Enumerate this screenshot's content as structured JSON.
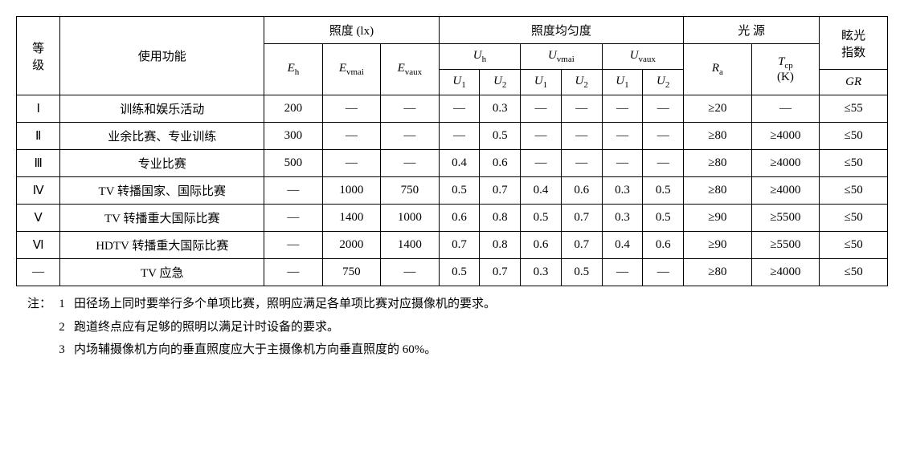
{
  "columns": {
    "level": "等\n级",
    "function": "使用功能",
    "illuminance": "照度 (lx)",
    "uniformity": "照度均匀度",
    "light_source": "光 源",
    "glare": "眩光\n指数",
    "Eh": "E_h",
    "Evmai": "E_vmai",
    "Evaux": "E_vaux",
    "Uh": "U_h",
    "Uvmai": "U_vmai",
    "Uvaux": "U_vaux",
    "U1": "U_1",
    "U2": "U_2",
    "Ra": "R_a",
    "Tcp": "T_cp",
    "TcpUnit": "(K)",
    "GR": "GR"
  },
  "rows": [
    {
      "lvl": "Ⅰ",
      "fn": "训练和娱乐活动",
      "Eh": "200",
      "Evmai": "—",
      "Evaux": "—",
      "Uh1": "—",
      "Uh2": "0.3",
      "Uv1": "—",
      "Uv2": "—",
      "Ux1": "—",
      "Ux2": "—",
      "Ra": "≥20",
      "Tcp": "—",
      "GR": "≤55"
    },
    {
      "lvl": "Ⅱ",
      "fn": "业余比赛、专业训练",
      "Eh": "300",
      "Evmai": "—",
      "Evaux": "—",
      "Uh1": "—",
      "Uh2": "0.5",
      "Uv1": "—",
      "Uv2": "—",
      "Ux1": "—",
      "Ux2": "—",
      "Ra": "≥80",
      "Tcp": "≥4000",
      "GR": "≤50"
    },
    {
      "lvl": "Ⅲ",
      "fn": "专业比赛",
      "Eh": "500",
      "Evmai": "—",
      "Evaux": "—",
      "Uh1": "0.4",
      "Uh2": "0.6",
      "Uv1": "—",
      "Uv2": "—",
      "Ux1": "—",
      "Ux2": "—",
      "Ra": "≥80",
      "Tcp": "≥4000",
      "GR": "≤50"
    },
    {
      "lvl": "Ⅳ",
      "fn": "TV 转播国家、国际比赛",
      "Eh": "—",
      "Evmai": "1000",
      "Evaux": "750",
      "Uh1": "0.5",
      "Uh2": "0.7",
      "Uv1": "0.4",
      "Uv2": "0.6",
      "Ux1": "0.3",
      "Ux2": "0.5",
      "Ra": "≥80",
      "Tcp": "≥4000",
      "GR": "≤50"
    },
    {
      "lvl": "Ⅴ",
      "fn": "TV 转播重大国际比赛",
      "Eh": "—",
      "Evmai": "1400",
      "Evaux": "1000",
      "Uh1": "0.6",
      "Uh2": "0.8",
      "Uv1": "0.5",
      "Uv2": "0.7",
      "Ux1": "0.3",
      "Ux2": "0.5",
      "Ra": "≥90",
      "Tcp": "≥5500",
      "GR": "≤50"
    },
    {
      "lvl": "Ⅵ",
      "fn": "HDTV 转播重大国际比赛",
      "Eh": "—",
      "Evmai": "2000",
      "Evaux": "1400",
      "Uh1": "0.7",
      "Uh2": "0.8",
      "Uv1": "0.6",
      "Uv2": "0.7",
      "Ux1": "0.4",
      "Ux2": "0.6",
      "Ra": "≥90",
      "Tcp": "≥5500",
      "GR": "≤50"
    },
    {
      "lvl": "—",
      "fn": "TV 应急",
      "Eh": "—",
      "Evmai": "750",
      "Evaux": "—",
      "Uh1": "0.5",
      "Uh2": "0.7",
      "Uv1": "0.3",
      "Uv2": "0.5",
      "Ux1": "—",
      "Ux2": "—",
      "Ra": "≥80",
      "Tcp": "≥4000",
      "GR": "≤50"
    }
  ],
  "notes": {
    "label": "注：",
    "items": [
      "田径场上同时要举行多个单项比赛，照明应满足各单项比赛对应摄像机的要求。",
      "跑道终点应有足够的照明以满足计时设备的要求。",
      "内场辅摄像机方向的垂直照度应大于主摄像机方向垂直照度的 60%。"
    ]
  },
  "col_widths": [
    "4.5%",
    "21%",
    "6%",
    "6%",
    "6%",
    "4.2%",
    "4.2%",
    "4.2%",
    "4.2%",
    "4.2%",
    "4.2%",
    "7%",
    "7%",
    "7%"
  ]
}
